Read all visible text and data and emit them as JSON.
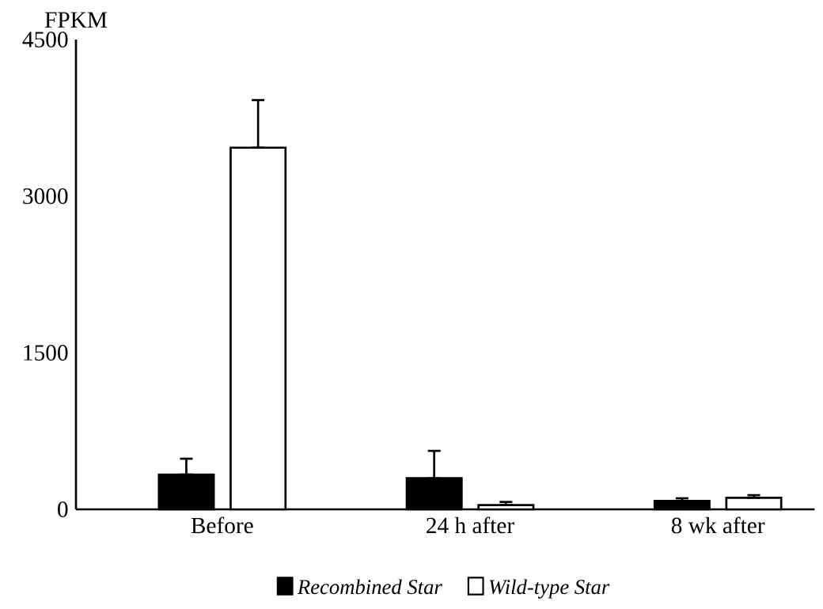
{
  "chart_data": {
    "type": "bar",
    "ylabel": "FPKM",
    "categories": [
      "Before",
      "24 h after",
      "8 wk after"
    ],
    "series": [
      {
        "name": "Recombined Star",
        "color": "#000000",
        "values": [
          333,
          298,
          80
        ],
        "errors": [
          [
            333,
            485
          ],
          [
            298,
            560
          ],
          [
            80,
            106
          ]
        ]
      },
      {
        "name": "Wild-type Star",
        "color": "#ffffff",
        "values": [
          3464,
          41,
          111
        ],
        "errors": [
          [
            3464,
            3920
          ],
          [
            41,
            71
          ],
          [
            111,
            136
          ]
        ]
      }
    ],
    "ylim": [
      0,
      4500
    ],
    "yticks": [
      0,
      1500,
      3000,
      4500
    ],
    "grid": false,
    "legend": "bottom"
  }
}
